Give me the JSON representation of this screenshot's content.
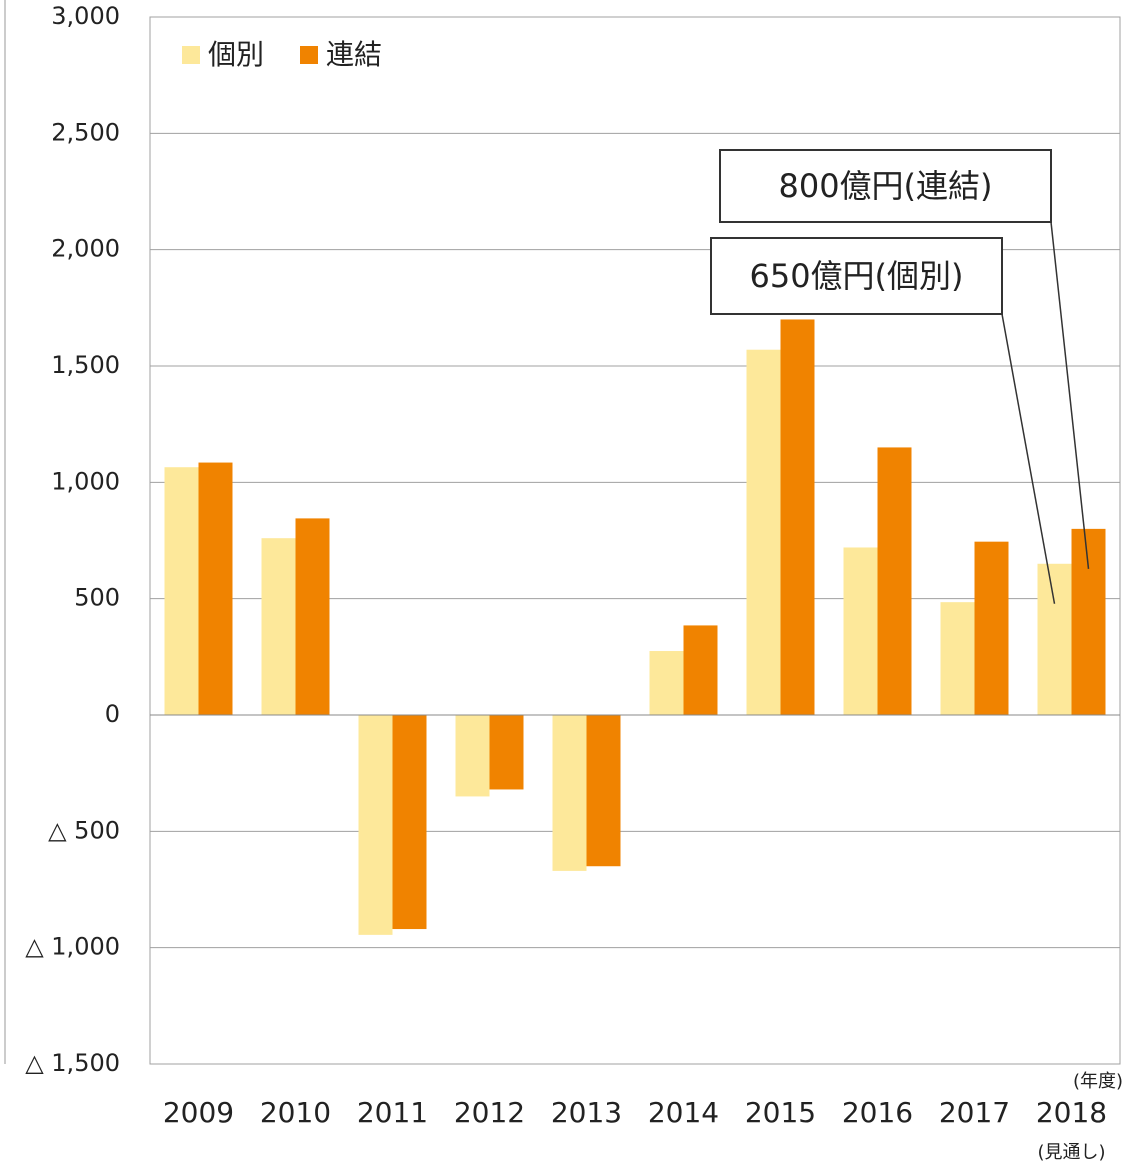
{
  "chart_data": {
    "type": "bar",
    "categories": [
      "2009",
      "2010",
      "2011",
      "2012",
      "2013",
      "2014",
      "2015",
      "2016",
      "2017",
      "2018"
    ],
    "category_note": "(見通し)",
    "x_unit": "(年度)",
    "series": [
      {
        "name": "個別",
        "color": "#fde89a",
        "values": [
          1065,
          760,
          -945,
          -350,
          -670,
          275,
          1570,
          720,
          485,
          650
        ]
      },
      {
        "name": "連結",
        "color": "#f08300",
        "values": [
          1085,
          845,
          -920,
          -320,
          -650,
          385,
          1700,
          1150,
          745,
          800
        ]
      }
    ],
    "ylim": [
      -1500,
      3000
    ],
    "yticks": [
      {
        "value": -1500,
        "label": "△ 1,500"
      },
      {
        "value": -1000,
        "label": "△ 1,000"
      },
      {
        "value": -500,
        "label": "△ 500"
      },
      0,
      500,
      {
        "value": 1000,
        "label": "1,000"
      },
      {
        "value": 1500,
        "label": "1,500"
      },
      {
        "value": 2000,
        "label": "2,000"
      },
      {
        "value": 2500,
        "label": "2,500"
      },
      {
        "value": 3000,
        "label": "3,000"
      }
    ],
    "grid": true,
    "legend": "top-left",
    "annotations": [
      "800億円(連結)",
      "650億円(個別)"
    ]
  }
}
